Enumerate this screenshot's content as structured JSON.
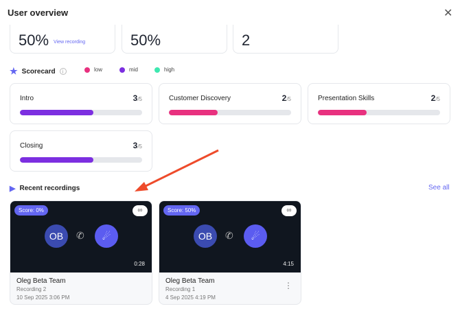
{
  "title": "User overview",
  "stats": [
    {
      "value": "50%",
      "link": "View recording"
    },
    {
      "value": "50%"
    },
    {
      "value": "2"
    }
  ],
  "scorecard": {
    "label": "Scorecard",
    "legend": [
      {
        "label": "low",
        "color": "#e8317f"
      },
      {
        "label": "mid",
        "color": "#7c2fe0"
      },
      {
        "label": "high",
        "color": "#3ee8b0"
      }
    ],
    "items": [
      {
        "name": "Intro",
        "score": "3",
        "max": "/5",
        "fraction": 0.6,
        "color": "#7c2fe0"
      },
      {
        "name": "Customer Discovery",
        "score": "2",
        "max": "/5",
        "fraction": 0.4,
        "color": "#e8317f"
      },
      {
        "name": "Presentation Skills",
        "score": "2",
        "max": "/5",
        "fraction": 0.4,
        "color": "#e8317f"
      },
      {
        "name": "Closing",
        "score": "3",
        "max": "/5",
        "fraction": 0.6,
        "color": "#7c2fe0"
      }
    ]
  },
  "recent": {
    "label": "Recent recordings",
    "see_all": "See all",
    "items": [
      {
        "score": "Score: 0%",
        "initials": "OB",
        "duration": "0:28",
        "team": "Oleg Beta Team",
        "name": "Recording 2",
        "date": "10 Sep 2025 3:06 PM"
      },
      {
        "score": "Score: 50%",
        "initials": "OB",
        "duration": "4:15",
        "team": "Oleg Beta Team",
        "name": "Recording 1",
        "date": "4 Sep 2025 4:19 PM"
      }
    ]
  }
}
